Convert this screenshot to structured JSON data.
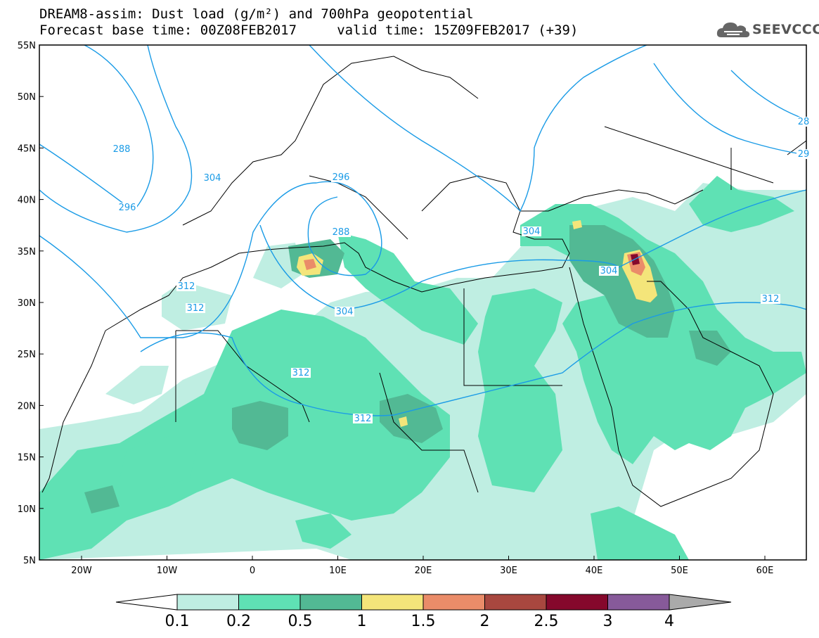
{
  "title": {
    "line1": "DREAM8-assim: Dust load (g/m²) and 700hPa geopotential",
    "line2": "Forecast base time: 00Z08FEB2017     valid time: 15Z09FEB2017 (+39)"
  },
  "logo": {
    "text": "SEEVCCC",
    "icon": "cloud-icon"
  },
  "map": {
    "lat_labels": [
      "55N",
      "50N",
      "45N",
      "40N",
      "35N",
      "30N",
      "25N",
      "20N",
      "15N",
      "10N",
      "5N"
    ],
    "lon_labels": [
      "20W",
      "10W",
      "0",
      "10E",
      "20E",
      "30E",
      "40E",
      "50E",
      "60E"
    ],
    "contour_labels": [
      "288",
      "296",
      "304",
      "296",
      "288",
      "312",
      "312",
      "304",
      "312",
      "312",
      "304",
      "304",
      "312",
      "28",
      "29"
    ],
    "colors": {
      "c01": "#bfeee2",
      "c02": "#5fe1b4",
      "c05": "#52b994",
      "c1": "#f4e57a",
      "c15": "#ea8c69",
      "c2": "#a8473f",
      "c25": "#85082c",
      "c3": "#875a9a",
      "c4": "#aaaaaa",
      "contour": "#1a9be6"
    }
  },
  "colorbar": {
    "labels": [
      "0.1",
      "0.2",
      "0.5",
      "1",
      "1.5",
      "2",
      "2.5",
      "3",
      "4"
    ],
    "colors": [
      "#bfeee2",
      "#5fe1b4",
      "#52b994",
      "#f4e57a",
      "#ea8c69",
      "#a8473f",
      "#85082c",
      "#875a9a"
    ],
    "low_end": "#ffffff",
    "high_end": "#aaaaaa"
  }
}
